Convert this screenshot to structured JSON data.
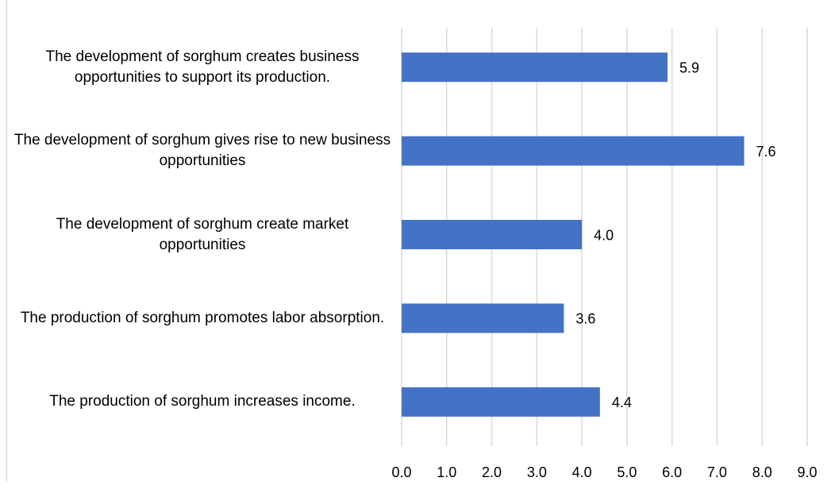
{
  "chart_data": {
    "type": "bar",
    "orientation": "horizontal",
    "categories": [
      "The development of sorghum creates business opportunities to support its production.",
      "The development of sorghum gives rise to new business opportunities",
      "The development of sorghum create market opportunities",
      "The production of sorghum promotes labor absorption.",
      "The production of sorghum increases income."
    ],
    "values": [
      5.9,
      7.6,
      4.0,
      3.6,
      4.4
    ],
    "value_labels": [
      "5.9",
      "7.6",
      "4.0",
      "3.6",
      "4.4"
    ],
    "color": "#4472c4",
    "xlim": [
      0,
      9
    ],
    "xticks": [
      {
        "value": 0,
        "label": "0.0"
      },
      {
        "value": 1,
        "label": "1.0"
      },
      {
        "value": 2,
        "label": "2.0"
      },
      {
        "value": 3,
        "label": "3.0"
      },
      {
        "value": 4,
        "label": "4.0"
      },
      {
        "value": 5,
        "label": "5.0"
      },
      {
        "value": 6,
        "label": "6.0"
      },
      {
        "value": 7,
        "label": "7.0"
      },
      {
        "value": 8,
        "label": "8.0"
      },
      {
        "value": 9,
        "label": "9.0"
      }
    ],
    "grid": true
  }
}
